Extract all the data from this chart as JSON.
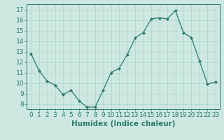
{
  "x": [
    0,
    1,
    2,
    3,
    4,
    5,
    6,
    7,
    8,
    9,
    10,
    11,
    12,
    13,
    14,
    15,
    16,
    17,
    18,
    19,
    20,
    21,
    22,
    23
  ],
  "y": [
    12.8,
    11.2,
    10.2,
    9.8,
    8.9,
    9.3,
    8.3,
    7.7,
    7.7,
    9.3,
    11.0,
    11.4,
    12.7,
    14.3,
    14.8,
    16.1,
    16.2,
    16.1,
    16.9,
    14.8,
    14.3,
    12.1,
    9.9,
    10.1
  ],
  "xlim": [
    -0.5,
    23.5
  ],
  "ylim": [
    7.5,
    17.5
  ],
  "yticks": [
    8,
    9,
    10,
    11,
    12,
    13,
    14,
    15,
    16,
    17
  ],
  "xticks": [
    0,
    1,
    2,
    3,
    4,
    5,
    6,
    7,
    8,
    9,
    10,
    11,
    12,
    13,
    14,
    15,
    16,
    17,
    18,
    19,
    20,
    21,
    22,
    23
  ],
  "xlabel": "Humidex (Indice chaleur)",
  "line_color": "#2d7a6e",
  "marker": "D",
  "marker_size": 2.0,
  "bg_color": "#cce8e0",
  "grid_color": "#aed4ca",
  "xlabel_fontsize": 7.5,
  "tick_fontsize": 6.5
}
